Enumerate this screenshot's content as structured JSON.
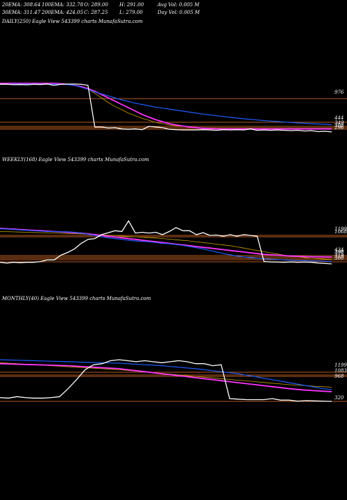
{
  "header": {
    "row1": [
      "20EMA: 308.64",
      "100EMA: 332.78",
      "O: 289.00",
      "H: 291.00",
      "Avg Vol: 0.005 M"
    ],
    "row2": [
      "30EMA: 311.47",
      "200EMA: 424.05",
      "C: 287.25",
      "L: 279.00",
      "Day Vol: 0.005 M"
    ]
  },
  "colors": {
    "background": "#000000",
    "price": "#ffffff",
    "ema_short": "#1e5cff",
    "ema_long": "#ff33ff",
    "ema_mid": "#c8a000",
    "level_line": "#b35a1f"
  },
  "chart_data": [
    {
      "type": "line",
      "title": "DAILY(250) Eagle  View  543399 charts MunafaSutra.com",
      "level_labels": [
        "976",
        "444",
        "349",
        "308",
        "296"
      ],
      "series": [
        {
          "values": [
            976,
            976,
            970,
            972,
            968,
            975,
            972,
            980,
            960,
            975,
            980,
            980,
            975,
            960,
            330,
            330,
            315,
            320,
            300,
            295,
            300,
            290,
            340,
            330,
            320,
            295,
            290,
            285,
            285,
            285,
            290,
            285,
            280,
            290,
            285,
            290,
            285,
            300,
            280,
            285,
            280,
            285,
            280,
            275,
            280,
            270,
            275,
            260,
            265,
            255
          ]
        },
        {
          "values": [
            978,
            978,
            978,
            978,
            978,
            978,
            978,
            978,
            978,
            975,
            970,
            960,
            930,
            900,
            860,
            830,
            800,
            770,
            740,
            715,
            690,
            670,
            650,
            630,
            615,
            600,
            585,
            570,
            555,
            540,
            525,
            512,
            500,
            488,
            475,
            465,
            455,
            445,
            436,
            428,
            420,
            412,
            405,
            398,
            392,
            386,
            380,
            375,
            370,
            365
          ]
        },
        {
          "values": [
            990,
            990,
            990,
            990,
            990,
            990,
            990,
            990,
            990,
            985,
            975,
            960,
            940,
            910,
            870,
            820,
            770,
            720,
            670,
            620,
            570,
            520,
            480,
            440,
            410,
            380,
            360,
            345,
            330,
            320,
            310,
            305,
            300,
            300,
            300,
            300,
            300,
            300,
            300,
            300,
            300,
            300,
            300,
            300,
            300,
            300,
            300,
            300,
            300,
            300
          ]
        },
        {
          "values": [
            980,
            980,
            980,
            980,
            980,
            980,
            980,
            980,
            980,
            978,
            972,
            960,
            940,
            900,
            840,
            770,
            700,
            640,
            590,
            540,
            500,
            460,
            430,
            400,
            380,
            360,
            350,
            340,
            330,
            320,
            315,
            310,
            305,
            300,
            300,
            300,
            300,
            300,
            300,
            300,
            300,
            300,
            300,
            300,
            300,
            300,
            300,
            300,
            300,
            300
          ]
        }
      ]
    },
    {
      "type": "line",
      "title": "WEEKLY(168) Eagle  View  543399 charts MunafaSutra.com",
      "level_labels": [
        "1199",
        "1068",
        "434",
        "390",
        "375",
        "319",
        "300"
      ],
      "series": [
        {
          "values": [
            300,
            280,
            300,
            290,
            300,
            300,
            320,
            360,
            360,
            480,
            550,
            640,
            780,
            880,
            900,
            1000,
            1050,
            1100,
            1080,
            1350,
            1040,
            1060,
            1040,
            1060,
            1000,
            1080,
            1180,
            1100,
            1100,
            1000,
            1050,
            980,
            990,
            960,
            1000,
            960,
            1000,
            980,
            960,
            320,
            310,
            305,
            300,
            310,
            300,
            305,
            300,
            280,
            270,
            260
          ]
        },
        {
          "values": [
            1150,
            1140,
            1130,
            1120,
            1110,
            1100,
            1090,
            1080,
            1080,
            1070,
            1070,
            1060,
            1040,
            1010,
            980,
            950,
            920,
            900,
            880,
            860,
            840,
            830,
            820,
            800,
            780,
            770,
            750,
            730,
            700,
            670,
            640,
            600,
            560,
            520,
            490,
            460,
            440,
            420,
            400,
            390,
            380,
            370,
            360,
            350,
            345,
            340,
            335,
            330,
            325,
            320
          ]
        },
        {
          "values": [
            1160,
            1150,
            1140,
            1130,
            1120,
            1110,
            1100,
            1090,
            1080,
            1070,
            1060,
            1050,
            1040,
            1020,
            1000,
            980,
            960,
            940,
            920,
            900,
            880,
            860,
            840,
            820,
            800,
            780,
            760,
            740,
            720,
            700,
            680,
            660,
            640,
            620,
            600,
            580,
            560,
            540,
            520,
            500,
            490,
            480,
            470,
            460,
            450,
            445,
            440,
            438,
            436,
            434
          ]
        },
        {
          "values": [
            1080,
            1075,
            1070,
            1065,
            1060,
            1055,
            1050,
            1045,
            1040,
            1035,
            1030,
            1025,
            1020,
            1015,
            1005,
            995,
            985,
            975,
            965,
            955,
            945,
            935,
            925,
            915,
            900,
            885,
            870,
            855,
            840,
            820,
            800,
            780,
            760,
            740,
            720,
            690,
            660,
            630,
            600,
            570,
            540,
            510,
            480,
            460,
            440,
            420,
            400,
            390,
            380,
            375
          ]
        }
      ]
    },
    {
      "type": "line",
      "title": "MONTHLY(40) Eagle  View  543399 charts MunafaSutra.com",
      "level_labels": [
        "1199",
        "1083",
        "968",
        "320"
      ],
      "series": [
        {
          "values": [
            340,
            330,
            360,
            340,
            330,
            330,
            340,
            360,
            520,
            700,
            900,
            1000,
            1020,
            1080,
            1100,
            1080,
            1060,
            1080,
            1060,
            1040,
            1060,
            1080,
            1060,
            1020,
            1020,
            980,
            1000,
            320,
            310,
            300,
            300,
            300,
            320,
            290,
            290,
            270,
            280,
            275,
            270,
            265
          ]
        },
        {
          "values": [
            1100,
            1095,
            1090,
            1085,
            1080,
            1075,
            1070,
            1065,
            1060,
            1055,
            1050,
            1045,
            1040,
            1035,
            1030,
            1020,
            1010,
            1000,
            990,
            980,
            965,
            950,
            935,
            920,
            900,
            880,
            860,
            840,
            820,
            790,
            760,
            730,
            700,
            670,
            640,
            610,
            580,
            550,
            520,
            500
          ]
        },
        {
          "values": [
            1020,
            1015,
            1010,
            1005,
            1000,
            995,
            990,
            985,
            980,
            970,
            960,
            950,
            940,
            930,
            920,
            900,
            880,
            860,
            840,
            820,
            800,
            780,
            760,
            740,
            720,
            700,
            680,
            660,
            640,
            620,
            600,
            580,
            560,
            540,
            520,
            505,
            490,
            480,
            470,
            460
          ]
        },
        {
          "values": [
            1040,
            1030,
            1020,
            1010,
            1000,
            990,
            980,
            970,
            960,
            950,
            940,
            930,
            920,
            910,
            900,
            885,
            870,
            855,
            840,
            825,
            810,
            795,
            780,
            765,
            750,
            735,
            720,
            705,
            690,
            675,
            660,
            645,
            630,
            615,
            600,
            590,
            580,
            570,
            560,
            550
          ]
        }
      ]
    }
  ]
}
